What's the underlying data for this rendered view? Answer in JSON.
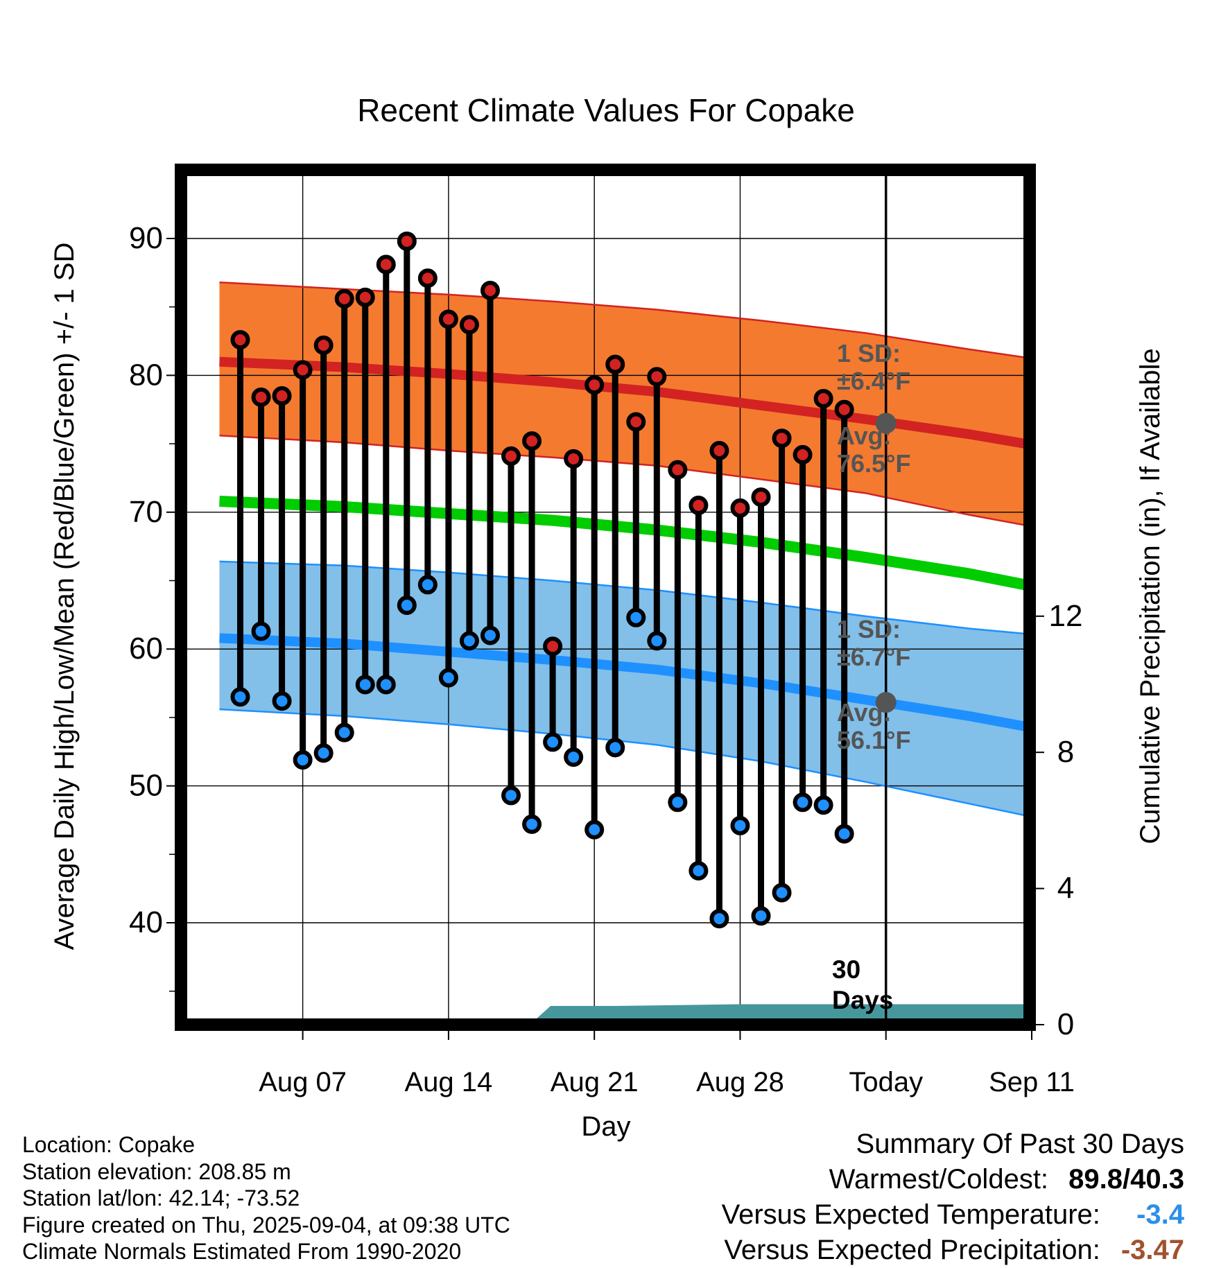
{
  "chart_data": {
    "type": "line",
    "title": "Recent Climate Values For Copake",
    "xlabel": "Day",
    "ylabel": "Average Daily High/Low/Mean (Red/Blue/Green) +/- 1 SD",
    "y2label": "Cumulative Precipitation (in), If Available",
    "ylim": [
      33.5,
      96
    ],
    "y2lim": [
      0,
      20
    ],
    "xlim": [
      -1.5,
      43.4
    ],
    "x_ticks": [
      {
        "day": 3,
        "label": "Aug 07"
      },
      {
        "day": 10,
        "label": "Aug 14"
      },
      {
        "day": 17,
        "label": "Aug 21"
      },
      {
        "day": 24,
        "label": "Aug 28"
      },
      {
        "day": 31,
        "label": "Today"
      },
      {
        "day": 38,
        "label": "Sep 11"
      }
    ],
    "y_ticks": [
      40,
      50,
      60,
      70,
      80,
      90
    ],
    "y2_ticks": [
      0,
      4,
      8,
      12
    ],
    "today_day": 31,
    "days_marker": [
      "30",
      "Days"
    ],
    "daily_highs": [
      82.6,
      78.4,
      78.5,
      80.4,
      82.2,
      85.6,
      85.7,
      88.1,
      89.8,
      87.1,
      84.1,
      83.7,
      86.2,
      74.1,
      75.2,
      60.2,
      73.9,
      79.3,
      80.8,
      76.6,
      79.9,
      73.1,
      70.5,
      74.5,
      70.3,
      71.1,
      75.4,
      74.2,
      78.3,
      77.5
    ],
    "daily_lows": [
      56.5,
      61.3,
      56.2,
      51.9,
      52.4,
      53.9,
      57.4,
      57.4,
      63.2,
      64.7,
      57.9,
      60.6,
      61.0,
      49.3,
      47.2,
      53.2,
      52.1,
      46.8,
      52.8,
      62.3,
      60.6,
      48.8,
      43.8,
      40.3,
      47.1,
      40.5,
      42.2,
      48.8,
      48.6,
      46.5
    ],
    "normal_high": {
      "day": [
        -1,
        5,
        10,
        15,
        20,
        25,
        30,
        35,
        40,
        43
      ],
      "avg": [
        81.0,
        80.6,
        80.1,
        79.5,
        78.8,
        77.8,
        76.8,
        75.7,
        74.4,
        73.5
      ],
      "sd_upper": [
        86.8,
        86.3,
        85.9,
        85.4,
        84.8,
        84.0,
        83.1,
        81.9,
        80.8,
        80.2
      ],
      "sd_lower": [
        75.6,
        75.1,
        74.5,
        74.0,
        73.4,
        72.4,
        71.4,
        69.8,
        68.4,
        67.4
      ]
    },
    "normal_mean": {
      "day": [
        -1,
        5,
        10,
        15,
        20,
        25,
        30,
        35,
        40,
        43
      ],
      "avg": [
        70.8,
        70.4,
        69.9,
        69.4,
        68.7,
        67.8,
        66.7,
        65.5,
        64.0,
        63.1
      ]
    },
    "normal_low": {
      "day": [
        -1,
        5,
        10,
        15,
        20,
        25,
        30,
        35,
        40,
        43
      ],
      "avg": [
        60.8,
        60.4,
        59.8,
        59.2,
        58.5,
        57.5,
        56.3,
        55.1,
        53.7,
        52.9
      ],
      "sd_upper": [
        66.4,
        66.1,
        65.6,
        65.0,
        64.3,
        63.4,
        62.4,
        61.5,
        60.8,
        60.2
      ],
      "sd_lower": [
        55.6,
        55.1,
        54.5,
        53.8,
        53.0,
        51.8,
        50.3,
        48.7,
        47.1,
        46.3
      ]
    },
    "precipitation": {
      "day": [
        13.9,
        14.9,
        18,
        24,
        43.4
      ],
      "cumulative": [
        0,
        0.55,
        0.55,
        0.6,
        0.6
      ]
    },
    "annotations": {
      "high_sd": [
        "1 SD:",
        "±6.4°F"
      ],
      "high_avg": [
        "Avg:",
        "76.5°F"
      ],
      "low_sd": [
        "1 SD:",
        "±6.7°F"
      ],
      "low_avg": [
        "Avg:",
        "56.1°F"
      ]
    },
    "today_normal_high": 76.5,
    "today_normal_low": 56.1,
    "colors": {
      "high": "#d22222",
      "high_band": "#f47a30",
      "mean": "#00cc00",
      "low": "#1e90ff",
      "low_band": "#82bfe9",
      "precip": "#46979c",
      "marker_today": "#555555"
    },
    "grid": true,
    "legend": "none"
  },
  "footer": {
    "location": "Location: Copake",
    "elevation": "Station elevation: 208.85 m",
    "latlon": "Station lat/lon: 42.14; -73.52",
    "created": "Figure created on Thu, 2025-09-04, at 09:38 UTC",
    "normals": "Climate Normals Estimated From 1990-2020"
  },
  "summary": {
    "title": "Summary Of Past 30 Days",
    "warmest_label": "Warmest/Coldest:",
    "warmest_value": "89.8/40.3",
    "temp_label": "Versus Expected Temperature:",
    "temp_value": "-3.4",
    "temp_color": "#2b8fe8",
    "precip_label": "Versus Expected Precipitation:",
    "precip_value": "-3.47",
    "precip_color": "#a0522d"
  }
}
